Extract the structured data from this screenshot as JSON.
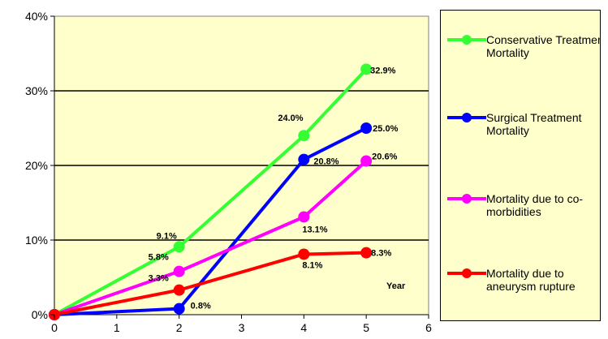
{
  "chart_data": {
    "type": "line",
    "xlabel": "Year",
    "x_ticks": [
      0,
      1,
      2,
      3,
      4,
      5,
      6
    ],
    "y_ticks": [
      "0%",
      "10%",
      "20%",
      "30%",
      "40%"
    ],
    "xlim": [
      0,
      6
    ],
    "ylim": [
      0,
      40
    ],
    "grid": "horizontal",
    "legend_position": "right",
    "plot_background": "#ffffcc",
    "series": [
      {
        "name": "Conservative Treatment Mortality",
        "color": "#33ff33",
        "x": [
          0,
          2,
          4,
          5
        ],
        "y": [
          0,
          9.1,
          24.0,
          32.9
        ],
        "labels": [
          "",
          "9.1%",
          "24.0%",
          "32.9%"
        ]
      },
      {
        "name": "Surgical Treatment Mortality",
        "color": "#0000ff",
        "x": [
          0,
          2,
          4,
          5
        ],
        "y": [
          0,
          0.8,
          20.8,
          25.0
        ],
        "labels": [
          "",
          "0.8%",
          "20.8%",
          "25.0%"
        ]
      },
      {
        "name": "Mortality due to co-morbidities",
        "color": "#ff00ff",
        "x": [
          0,
          2,
          4,
          5
        ],
        "y": [
          0,
          5.8,
          13.1,
          20.6
        ],
        "labels": [
          "",
          "5.8%",
          "13.1%",
          "20.6%"
        ]
      },
      {
        "name": "Mortality due to aneurysm rupture",
        "color": "#ff0000",
        "x": [
          0,
          2,
          4,
          5
        ],
        "y": [
          0,
          3.3,
          8.1,
          8.3
        ],
        "labels": [
          "",
          "3.3%",
          "8.1%",
          "8.3%"
        ]
      }
    ]
  }
}
